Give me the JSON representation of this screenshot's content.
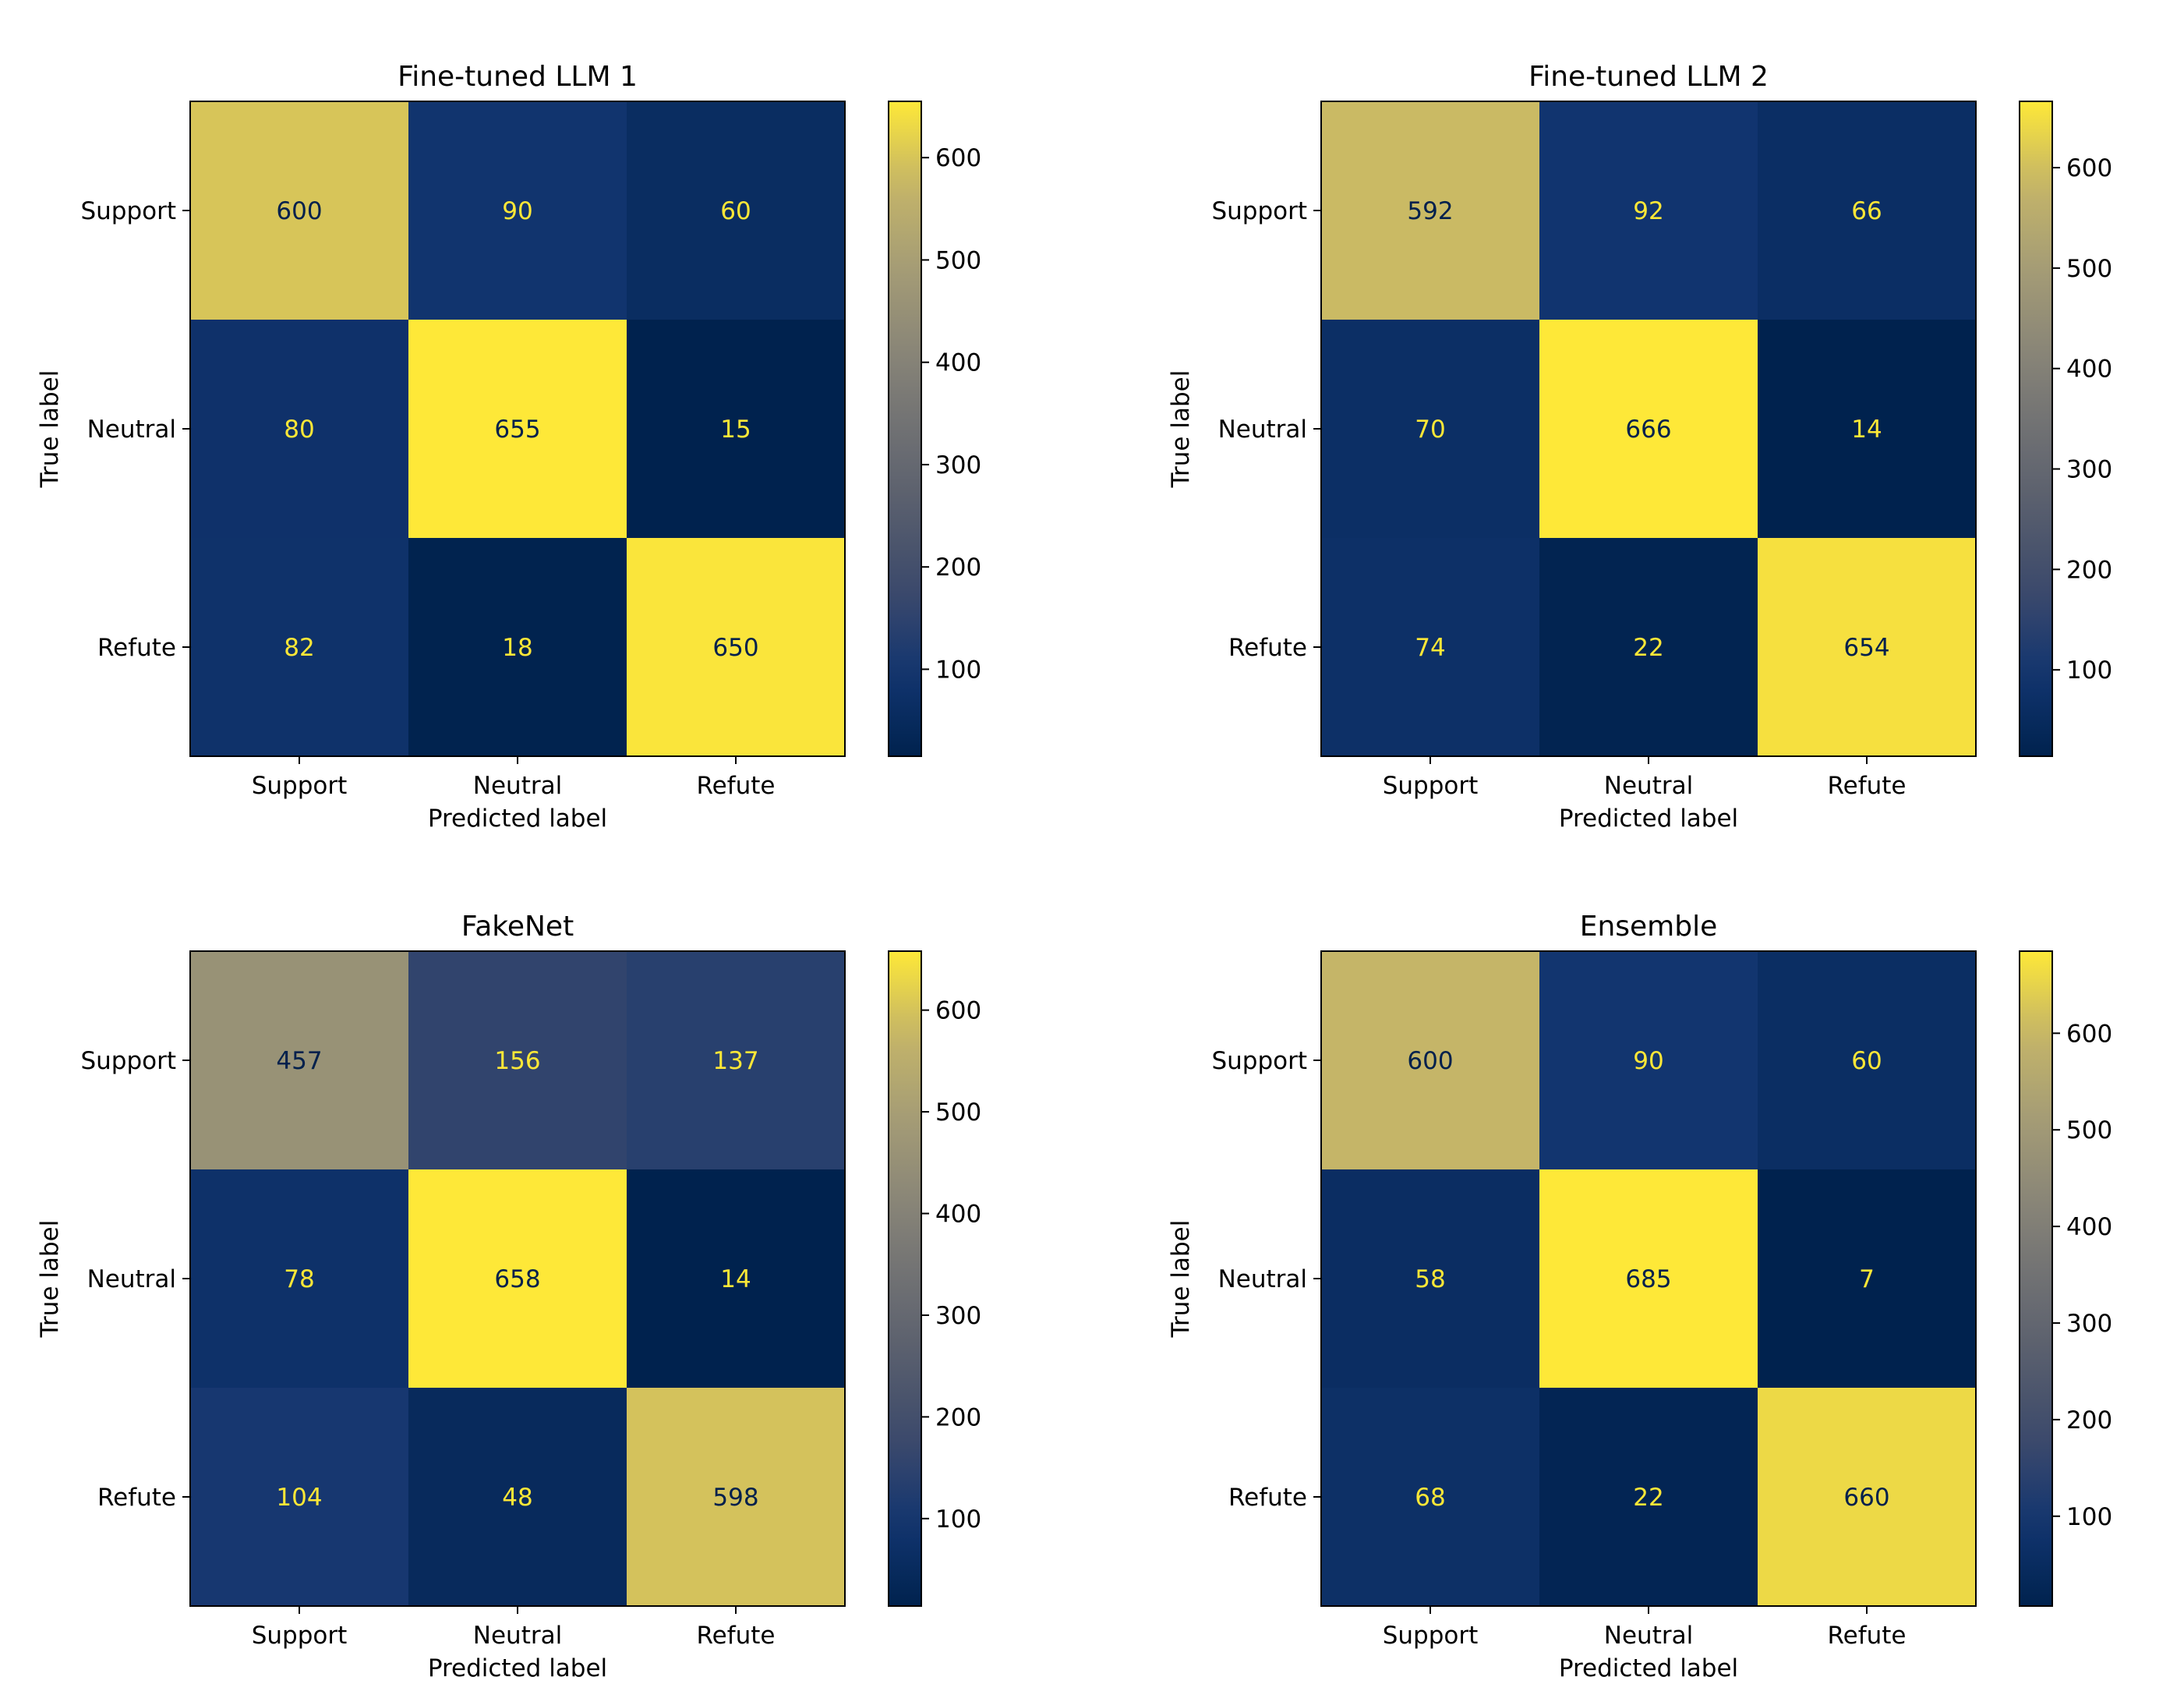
{
  "chart_data": [
    {
      "type": "heatmap",
      "title": "Fine-tuned LLM 1",
      "xlabel": "Predicted label",
      "ylabel": "True label",
      "x_categories": [
        "Support",
        "Neutral",
        "Refute"
      ],
      "y_categories": [
        "Support",
        "Neutral",
        "Refute"
      ],
      "values": [
        [
          600,
          90,
          60
        ],
        [
          80,
          655,
          15
        ],
        [
          82,
          18,
          650
        ]
      ],
      "colormap": "cividis",
      "colorbar": {
        "ticks": [
          100,
          200,
          300,
          400,
          500,
          600
        ],
        "range": [
          15,
          655
        ]
      }
    },
    {
      "type": "heatmap",
      "title": "Fine-tuned LLM 2",
      "xlabel": "Predicted label",
      "ylabel": "True label",
      "x_categories": [
        "Support",
        "Neutral",
        "Refute"
      ],
      "y_categories": [
        "Support",
        "Neutral",
        "Refute"
      ],
      "values": [
        [
          592,
          92,
          66
        ],
        [
          70,
          666,
          14
        ],
        [
          74,
          22,
          654
        ]
      ],
      "colormap": "cividis",
      "colorbar": {
        "ticks": [
          100,
          200,
          300,
          400,
          500,
          600
        ],
        "range": [
          14,
          666
        ]
      }
    },
    {
      "type": "heatmap",
      "title": "FakeNet",
      "xlabel": "Predicted label",
      "ylabel": "True label",
      "x_categories": [
        "Support",
        "Neutral",
        "Refute"
      ],
      "y_categories": [
        "Support",
        "Neutral",
        "Refute"
      ],
      "values": [
        [
          457,
          156,
          137
        ],
        [
          78,
          658,
          14
        ],
        [
          104,
          48,
          598
        ]
      ],
      "colormap": "cividis",
      "colorbar": {
        "ticks": [
          100,
          200,
          300,
          400,
          500,
          600
        ],
        "range": [
          14,
          658
        ]
      }
    },
    {
      "type": "heatmap",
      "title": "Ensemble",
      "xlabel": "Predicted label",
      "ylabel": "True label",
      "x_categories": [
        "Support",
        "Neutral",
        "Refute"
      ],
      "y_categories": [
        "Support",
        "Neutral",
        "Refute"
      ],
      "values": [
        [
          600,
          90,
          60
        ],
        [
          58,
          685,
          7
        ],
        [
          68,
          22,
          660
        ]
      ],
      "colormap": "cividis",
      "colorbar": {
        "ticks": [
          100,
          200,
          300,
          400,
          500,
          600
        ],
        "range": [
          7,
          685
        ]
      }
    }
  ],
  "colors": {
    "text_dark": "#000000",
    "text_light": "#fde737",
    "annotation_dark": "#00204c"
  }
}
